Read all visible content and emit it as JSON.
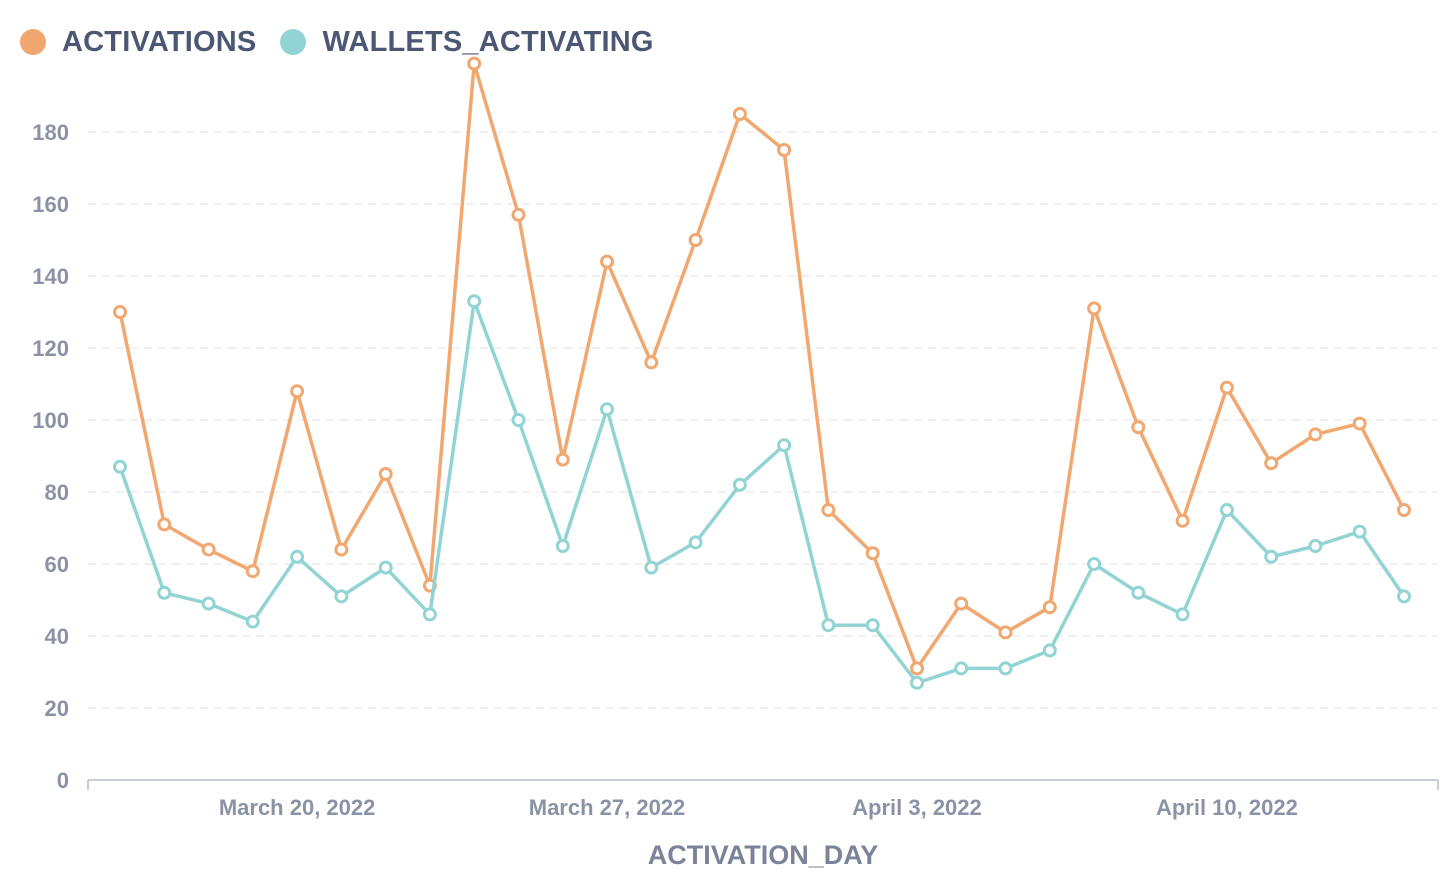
{
  "legend": {
    "series_1_label": "ACTIVATIONS",
    "series_2_label": "WALLETS_ACTIVATING"
  },
  "colors": {
    "activations": "#f0a870",
    "wallets_activating": "#92d4d4",
    "grid": "#ececec",
    "axis": "#b8bdc8"
  },
  "chart_data": {
    "type": "line",
    "title": "",
    "xlabel": "ACTIVATION_DAY",
    "ylabel": "",
    "x_type": "date",
    "x": [
      "2022-03-16",
      "2022-03-17",
      "2022-03-18",
      "2022-03-19",
      "2022-03-20",
      "2022-03-21",
      "2022-03-22",
      "2022-03-23",
      "2022-03-24",
      "2022-03-25",
      "2022-03-26",
      "2022-03-27",
      "2022-03-28",
      "2022-03-29",
      "2022-03-30",
      "2022-03-31",
      "2022-04-01",
      "2022-04-02",
      "2022-04-03",
      "2022-04-04",
      "2022-04-05",
      "2022-04-06",
      "2022-04-07",
      "2022-04-08",
      "2022-04-09",
      "2022-04-10",
      "2022-04-11",
      "2022-04-12",
      "2022-04-13",
      "2022-04-14"
    ],
    "x_ticks": [
      {
        "date": "2022-03-20",
        "label": "March 20, 2022"
      },
      {
        "date": "2022-03-27",
        "label": "March 27, 2022"
      },
      {
        "date": "2022-04-03",
        "label": "April 3, 2022"
      },
      {
        "date": "2022-04-10",
        "label": "April 10, 2022"
      }
    ],
    "y_ticks": [
      0,
      20,
      40,
      60,
      80,
      100,
      120,
      140,
      160,
      180
    ],
    "ylim": [
      0,
      200
    ],
    "grid": true,
    "legend_position": "top-left",
    "series": [
      {
        "name": "ACTIVATIONS",
        "color": "#f0a870",
        "values": [
          130,
          71,
          64,
          58,
          108,
          64,
          85,
          54,
          199,
          157,
          89,
          144,
          116,
          150,
          185,
          175,
          75,
          63,
          31,
          49,
          41,
          48,
          131,
          98,
          72,
          109,
          88,
          96,
          99,
          75
        ]
      },
      {
        "name": "WALLETS_ACTIVATING",
        "color": "#92d4d4",
        "values": [
          87,
          52,
          49,
          44,
          62,
          51,
          59,
          46,
          133,
          100,
          65,
          103,
          59,
          66,
          82,
          93,
          43,
          43,
          27,
          31,
          31,
          36,
          60,
          52,
          46,
          75,
          62,
          65,
          69,
          51
        ]
      }
    ]
  }
}
